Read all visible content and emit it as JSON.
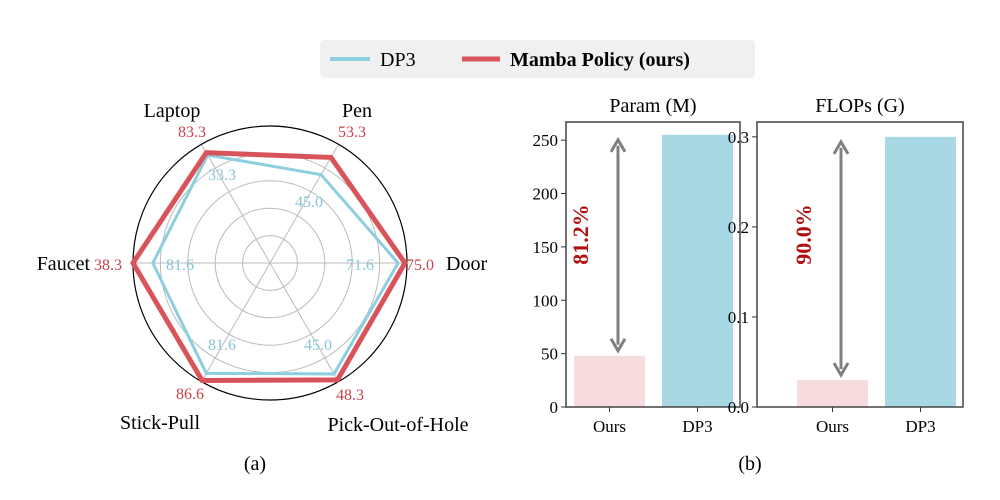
{
  "legend": {
    "items": [
      {
        "label": "DP3",
        "color": "#8ecfdf",
        "bold": false
      },
      {
        "label": "Mamba Policy (ours)",
        "color": "#d9545a",
        "bold": true
      }
    ]
  },
  "chart_data": [
    {
      "type": "radar",
      "caption": "(a)",
      "axes": [
        "Door",
        "Pen",
        "Laptop",
        "Faucet",
        "Stick-Pull",
        "Pick-Out-of-Hole"
      ],
      "series": [
        {
          "name": "Mamba Policy (ours)",
          "color": "#d9545a",
          "values": [
            "75.0",
            "53.3",
            "83.3",
            "38.3",
            "86.6",
            "48.3"
          ],
          "radial": [
            0.985,
            0.89,
            0.93,
            1.0,
            0.99,
            0.985
          ]
        },
        {
          "name": "DP3",
          "color": "#8ecfdf",
          "values": [
            "71.6",
            "45.0",
            "81.6",
            "33.3",
            "81.6",
            "45.0"
          ],
          "radial": [
            0.935,
            0.745,
            0.91,
            0.855,
            0.93,
            0.935
          ]
        }
      ],
      "grid_levels": [
        0.2,
        0.4,
        0.6,
        0.8
      ]
    },
    {
      "type": "bar",
      "title": "Param (M)",
      "categories": [
        "Ours",
        "DP3"
      ],
      "values": [
        48,
        255
      ],
      "colors": [
        "#f6dcdd",
        "#a8d8e4"
      ],
      "ylim": [
        0,
        267
      ],
      "yticks": [
        "0",
        "50",
        "100",
        "150",
        "200",
        "250"
      ],
      "ytick_values": [
        0,
        50,
        100,
        150,
        200,
        250
      ],
      "annotation": "81.2%"
    },
    {
      "type": "bar",
      "title": "FLOPs (G)",
      "categories": [
        "Ours",
        "DP3"
      ],
      "values": [
        0.03,
        0.3
      ],
      "colors": [
        "#f6dcdd",
        "#a8d8e4"
      ],
      "ylim": [
        0,
        0.3165
      ],
      "yticks": [
        "0.0",
        "0.1",
        "0.2",
        "0.3"
      ],
      "ytick_values": [
        0,
        0.1,
        0.2,
        0.3
      ],
      "annotation": "90.0%",
      "caption": "(b)"
    }
  ]
}
